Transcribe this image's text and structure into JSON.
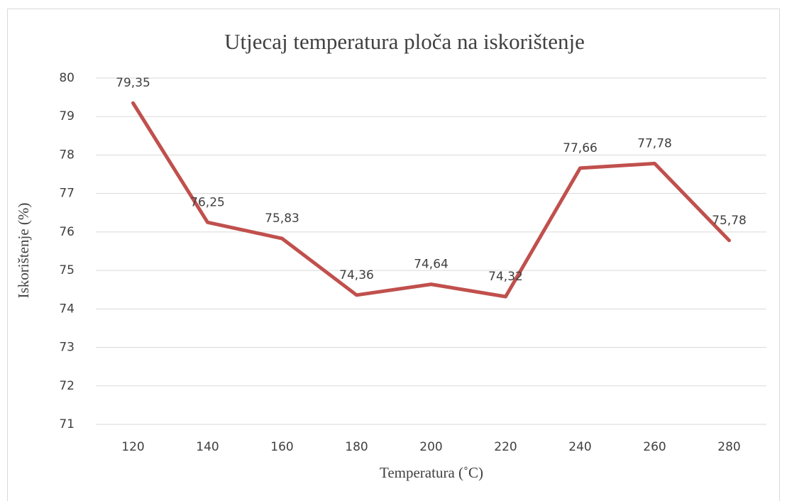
{
  "chart_data": {
    "type": "line",
    "title": "Utjecaj temperatura ploča na iskorištenje",
    "xlabel": "Temperatura (˚C)",
    "ylabel": "Iskorištenje (%)",
    "categories": [
      "120",
      "140",
      "160",
      "180",
      "200",
      "220",
      "240",
      "260",
      "280"
    ],
    "values": [
      79.35,
      76.25,
      75.83,
      74.36,
      74.64,
      74.32,
      77.66,
      77.78,
      75.78
    ],
    "value_labels": [
      "79,35",
      "76,25",
      "75,83",
      "74,36",
      "74,64",
      "74,32",
      "77,66",
      "77,78",
      "75,78"
    ],
    "color": "#c0504d",
    "ylim": [
      71,
      80
    ],
    "yticks": [
      71,
      72,
      73,
      74,
      75,
      76,
      77,
      78,
      79,
      80
    ],
    "grid": true
  }
}
